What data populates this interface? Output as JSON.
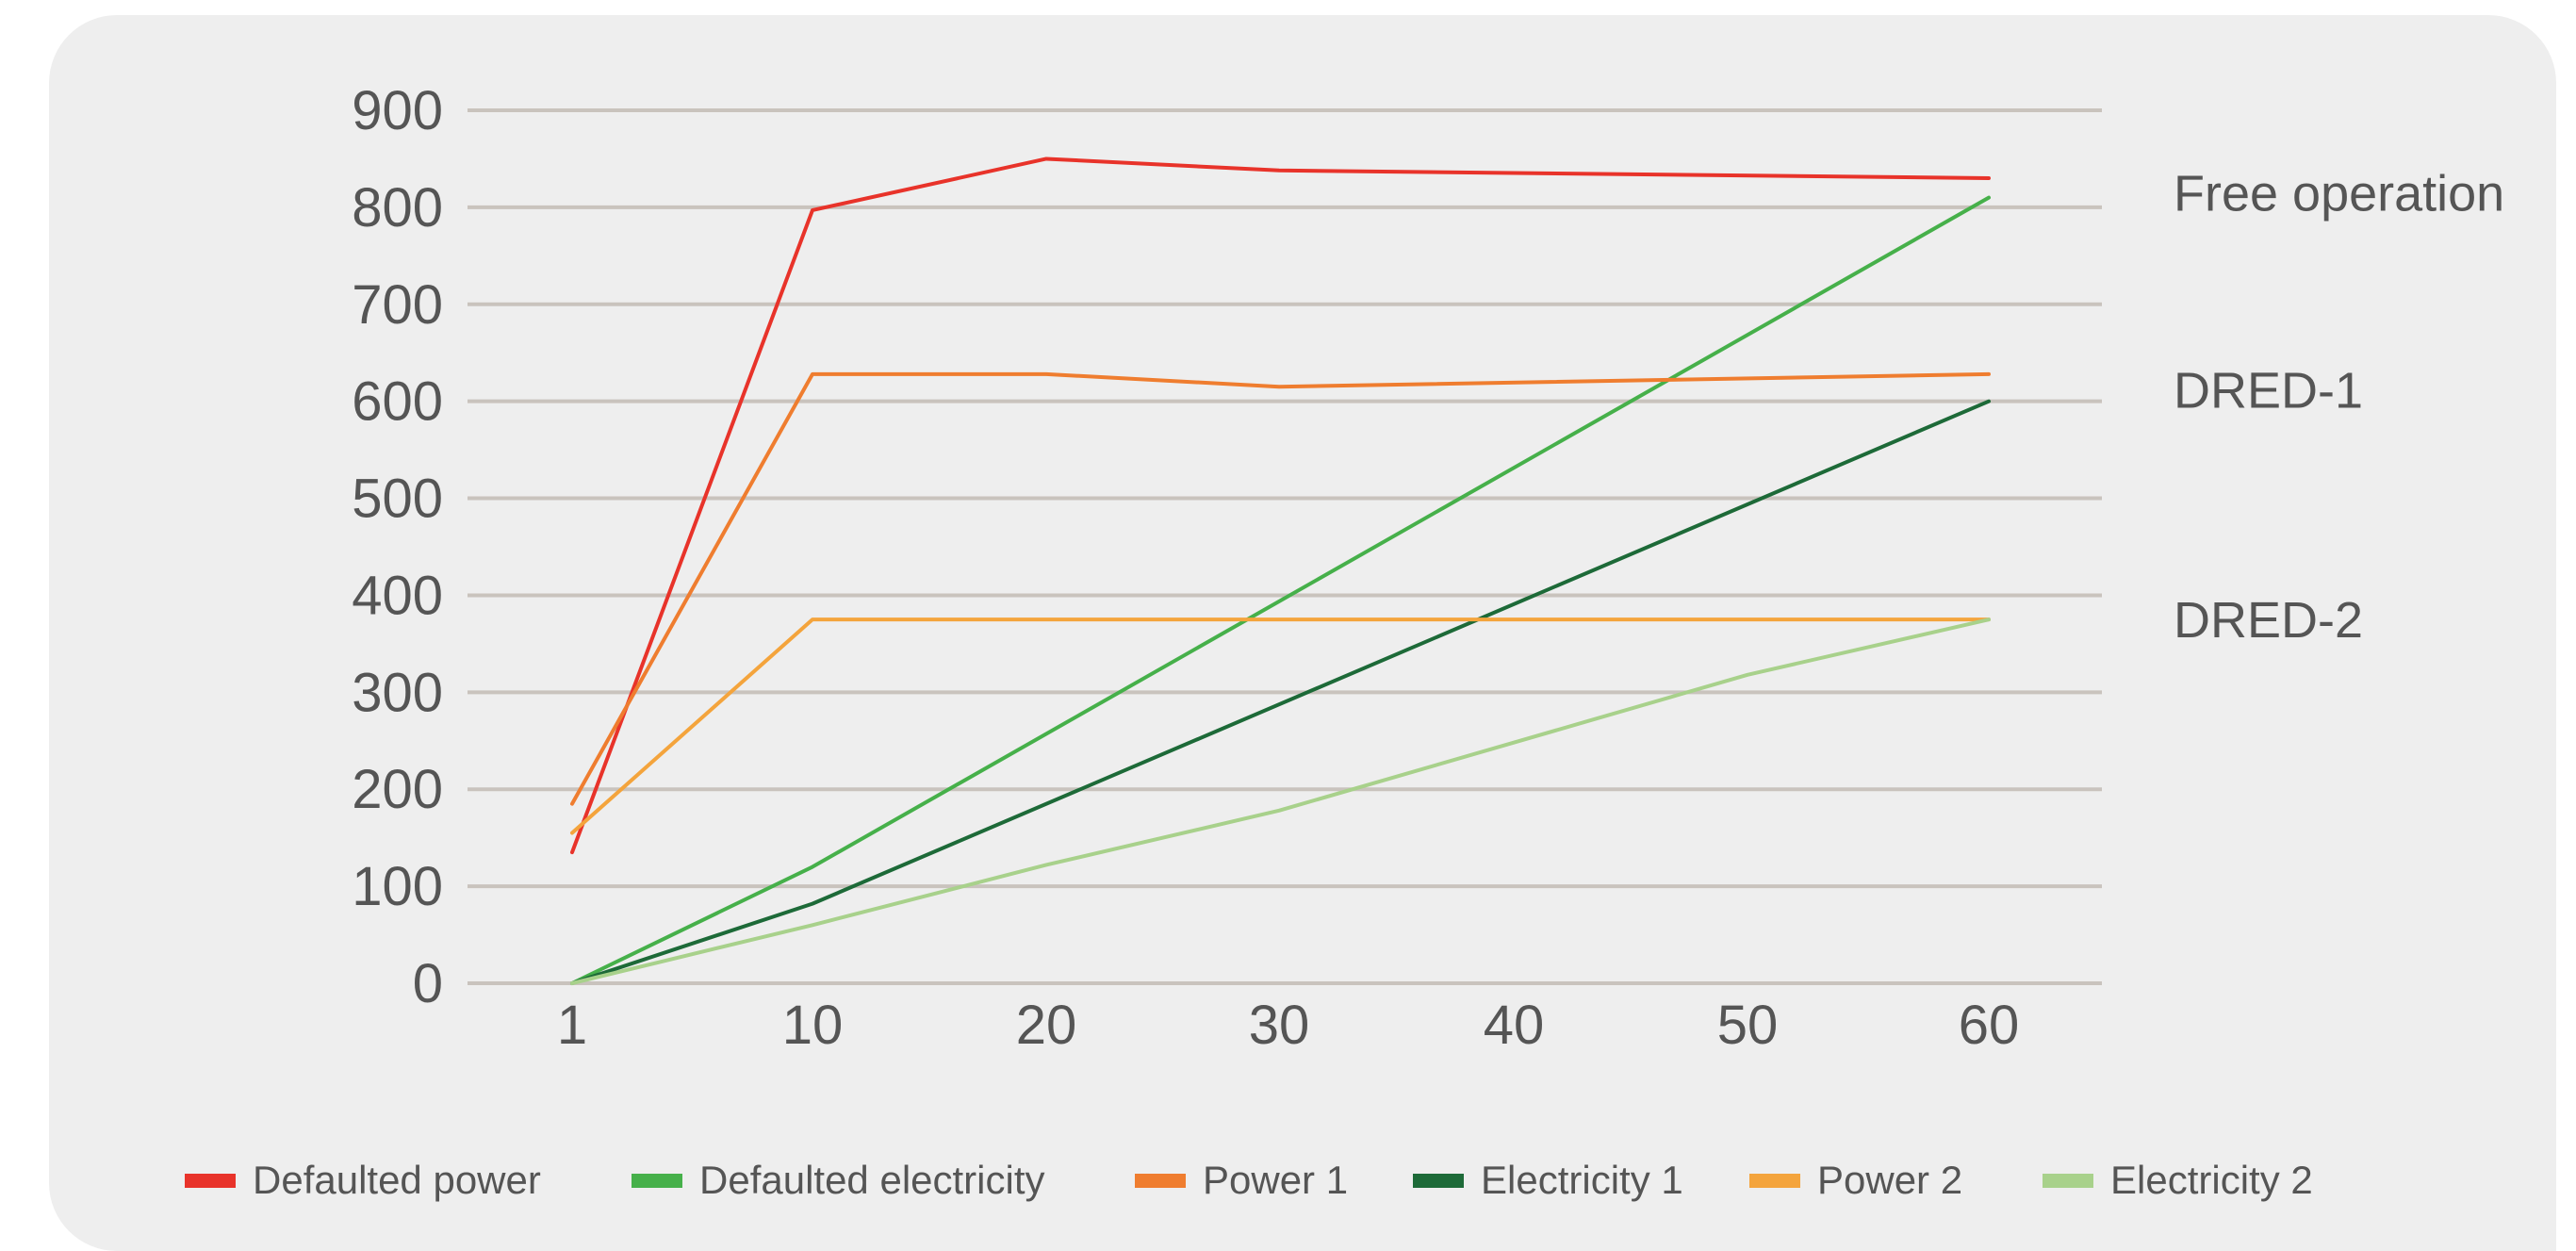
{
  "chart_data": {
    "type": "line",
    "x": [
      1,
      10,
      20,
      30,
      40,
      50,
      60
    ],
    "xticks": [
      "1",
      "10",
      "20",
      "30",
      "40",
      "50",
      "60"
    ],
    "yticks": [
      "0",
      "100",
      "200",
      "300",
      "400",
      "500",
      "600",
      "700",
      "800",
      "900"
    ],
    "ylim": [
      0,
      900
    ],
    "grid": "horizontal",
    "legend_position": "bottom",
    "series": [
      {
        "name": "Defaulted power",
        "color": "#e8332a",
        "x": [
          1,
          10,
          20,
          30,
          60
        ],
        "values": [
          135,
          797,
          850,
          838,
          830
        ]
      },
      {
        "name": "Defaulted electricity",
        "color": "#46b04a",
        "x": [
          1,
          10,
          60
        ],
        "values": [
          0,
          120,
          810
        ]
      },
      {
        "name": "Power 1",
        "color": "#ef7d2f",
        "x": [
          1,
          10,
          20,
          30,
          60
        ],
        "values": [
          185,
          628,
          628,
          615,
          628
        ]
      },
      {
        "name": "Electricity 1",
        "color": "#1d6a38",
        "x": [
          1,
          10,
          60
        ],
        "values": [
          0,
          82,
          600
        ]
      },
      {
        "name": "Power 2",
        "color": "#f4a43c",
        "x": [
          1,
          10,
          60
        ],
        "values": [
          155,
          375,
          375
        ]
      },
      {
        "name": "Electricity 2",
        "color": "#a8d18b",
        "x": [
          1,
          10,
          20,
          30,
          50,
          60
        ],
        "values": [
          0,
          60,
          122,
          178,
          318,
          375
        ]
      }
    ],
    "annotations": [
      {
        "text": "Free operation",
        "y": 815
      },
      {
        "text": "DRED-1",
        "y": 612
      },
      {
        "text": "DRED-2",
        "y": 375
      }
    ]
  }
}
